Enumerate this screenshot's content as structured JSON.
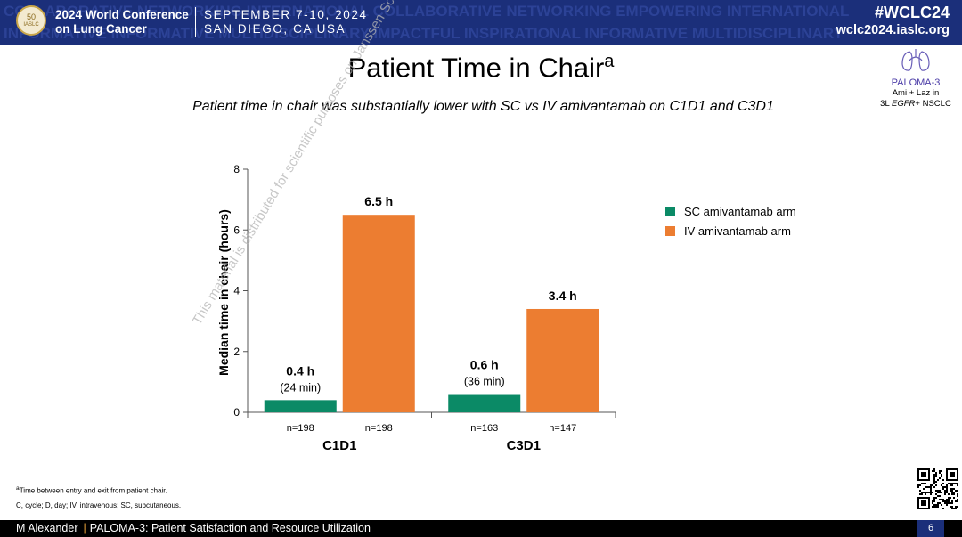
{
  "header": {
    "conference_line1": "2024 World Conference",
    "conference_line2": "on Lung Cancer",
    "date_line1": "SEPTEMBER 7-10, 2024",
    "date_line2": "SAN DIEGO, CA USA",
    "hashtag": "#WCLC24",
    "website": "wclc2024.iaslc.org",
    "logo_text": "50",
    "logo_subtext": "IASLC",
    "background_words_line1": "COLLABORATIVE  NETWORKING  INTERNATIONAL  COLLABORATIVE  NETWORKING  EMPOWERING  INTERNATIONAL",
    "background_words_line2": "INFORMATIVE  INFORMATIVE  MULTIDISCIPLINARY  IMPACTFUL  INSPIRATIONAL  INFORMATIVE  MULTIDISCIPLINARY"
  },
  "slide": {
    "title": "Patient Time in Chair",
    "title_superscript": "a",
    "subtitle": "Patient time in chair was substantially lower with SC vs IV amivantamab on C1D1 and C3D1"
  },
  "badge": {
    "name": "PALOMA-3",
    "line1": "Ami + Laz in",
    "line2_prefix": "3L ",
    "line2_italic": "EGFR",
    "line2_suffix": "+ NSCLC"
  },
  "watermark": "This material is distributed for scientific purposes on Janssen Science, and is not for promotional use",
  "chart_data": {
    "type": "bar",
    "title": "",
    "ylabel": "Median time in chair (hours)",
    "xlabel": "",
    "ylim": [
      0,
      8
    ],
    "yticks": [
      0,
      2,
      4,
      6,
      8
    ],
    "grid": false,
    "legend_position": "right",
    "categories": [
      "C1D1",
      "C3D1"
    ],
    "series": [
      {
        "name": "SC amivantamab arm",
        "color": "#0b8a66",
        "values": [
          0.4,
          0.6
        ],
        "labels": [
          "0.4 h",
          "0.6 h"
        ],
        "sublabels": [
          "(24 min)",
          "(36 min)"
        ],
        "n_labels": [
          "n=198",
          "n=163"
        ]
      },
      {
        "name": "IV amivantamab arm",
        "color": "#ec7d31",
        "values": [
          6.5,
          3.4
        ],
        "labels": [
          "6.5 h",
          "3.4 h"
        ],
        "sublabels": [
          "",
          ""
        ],
        "n_labels": [
          "n=198",
          "n=147"
        ]
      }
    ]
  },
  "footnotes": {
    "a_marker": "a",
    "a_text": "Time between entry and exit from patient chair.",
    "abbreviations": "C, cycle; D, day; IV, intravenous; SC, subcutaneous."
  },
  "footer": {
    "presenter": "M Alexander",
    "pipe": "|",
    "talk_title": "PALOMA-3: Patient Satisfaction and Resource Utilization",
    "page_number": "6"
  }
}
